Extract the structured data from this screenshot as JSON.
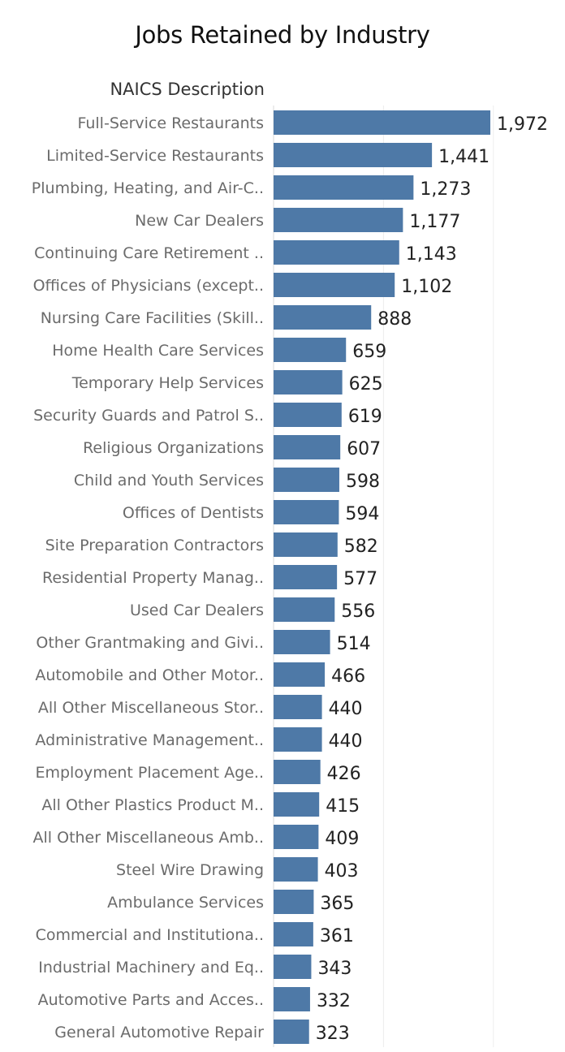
{
  "chart_data": {
    "type": "bar",
    "orientation": "horizontal",
    "title": "Jobs Retained by Industry",
    "row_header": "NAICS Description",
    "categories": [
      "Full-Service Restaurants",
      "Limited-Service Restaurants",
      "Plumbing, Heating, and Air-C..",
      "New Car Dealers",
      "Continuing Care Retirement ..",
      "Offices of Physicians (except..",
      "Nursing Care Facilities (Skill..",
      "Home Health Care Services",
      "Temporary Help Services",
      "Security Guards and Patrol S..",
      "Religious Organizations",
      "Child and Youth Services",
      "Offices of Dentists",
      "Site Preparation Contractors",
      "Residential Property Manag..",
      "Used Car Dealers",
      "Other Grantmaking and Givi..",
      "Automobile and Other Motor..",
      "All Other Miscellaneous Stor..",
      "Administrative Management..",
      "Employment Placement Age..",
      "All Other Plastics Product M..",
      "All Other Miscellaneous Amb..",
      "Steel Wire Drawing",
      "Ambulance Services",
      "Commercial and Institutiona..",
      "Industrial Machinery and Eq..",
      "Automotive Parts and Acces..",
      "General Automotive Repair"
    ],
    "values": [
      1972,
      1441,
      1273,
      1177,
      1143,
      1102,
      888,
      659,
      625,
      619,
      607,
      598,
      594,
      582,
      577,
      556,
      514,
      466,
      440,
      440,
      426,
      415,
      409,
      403,
      365,
      361,
      343,
      332,
      323
    ],
    "value_labels": [
      "1,972",
      "1,441",
      "1,273",
      "1,177",
      "1,143",
      "1,102",
      "888",
      "659",
      "625",
      "619",
      "607",
      "598",
      "594",
      "582",
      "577",
      "556",
      "514",
      "466",
      "440",
      "440",
      "426",
      "415",
      "409",
      "403",
      "365",
      "361",
      "343",
      "332",
      "323"
    ],
    "xlim": [
      0,
      2500
    ],
    "grid": true,
    "bar_color": "#4e79a7"
  }
}
